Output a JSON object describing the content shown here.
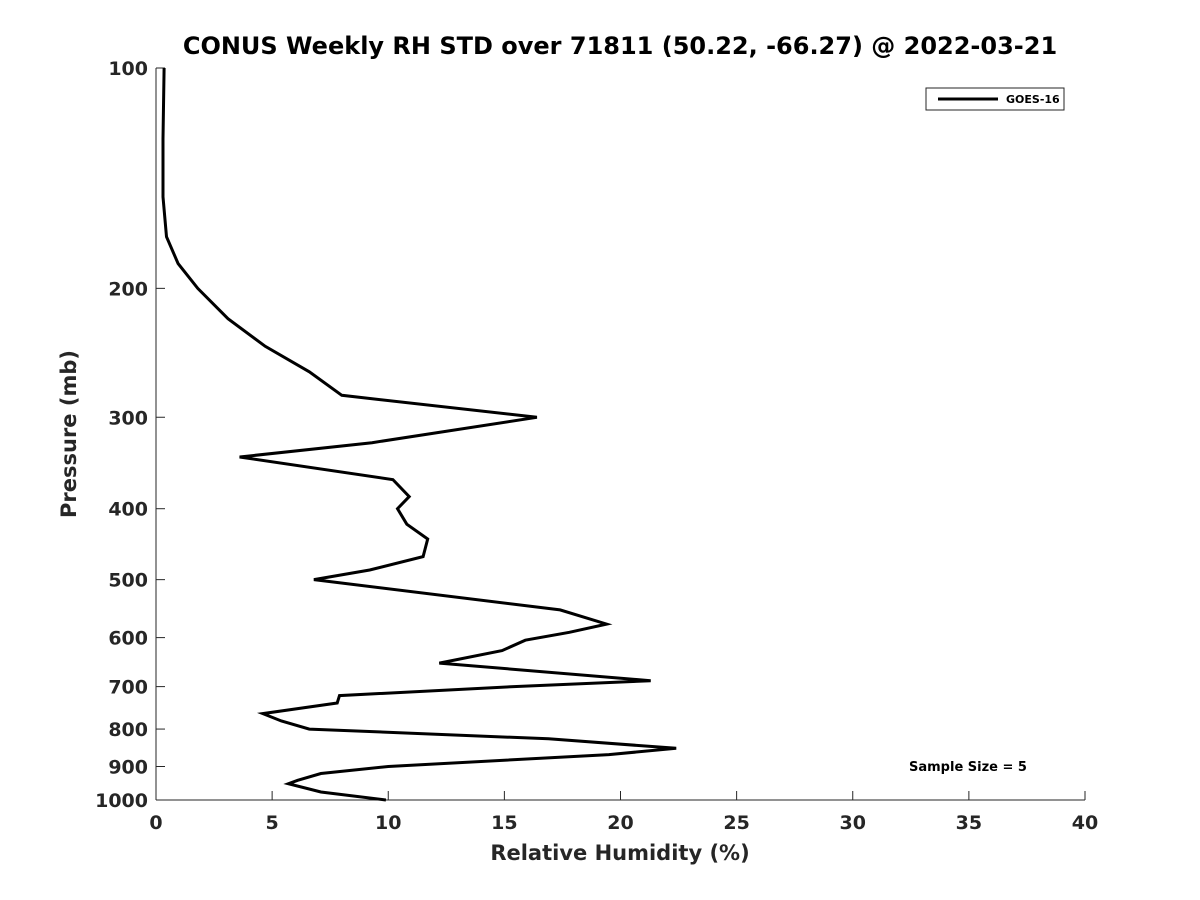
{
  "chart_data": {
    "type": "line",
    "title": "CONUS Weekly RH STD over 71811 (50.22, -66.27) @ 2022-03-21",
    "xlabel": "Relative Humidity (%)",
    "ylabel": "Pressure (mb)",
    "xlim": [
      0,
      40
    ],
    "ylim": [
      100,
      1000
    ],
    "yscale": "log",
    "yreversed": true,
    "grid": false,
    "legend_position": "top-right",
    "x_ticks": [
      0,
      5,
      10,
      15,
      20,
      25,
      30,
      35,
      40
    ],
    "x_tick_labels": [
      "0",
      "5",
      "10",
      "15",
      "20",
      "25",
      "30",
      "35",
      "40"
    ],
    "y_ticks": [
      100,
      200,
      300,
      400,
      500,
      600,
      700,
      800,
      900,
      1000
    ],
    "y_tick_labels": [
      "100",
      "200",
      "300",
      "400",
      "500",
      "600",
      "700",
      "800",
      "900",
      "1000"
    ],
    "series": [
      {
        "name": "GOES-16",
        "color": "#000000",
        "points": [
          [
            0.35,
            100
          ],
          [
            0.3,
            125
          ],
          [
            0.3,
            150
          ],
          [
            0.45,
            170
          ],
          [
            0.95,
            185
          ],
          [
            1.8,
            200
          ],
          [
            3.1,
            220
          ],
          [
            4.7,
            240
          ],
          [
            6.6,
            260
          ],
          [
            8.0,
            280
          ],
          [
            16.4,
            300
          ],
          [
            9.3,
            325
          ],
          [
            3.6,
            340
          ],
          [
            10.2,
            365
          ],
          [
            10.9,
            385
          ],
          [
            10.4,
            400
          ],
          [
            10.8,
            420
          ],
          [
            11.7,
            440
          ],
          [
            11.5,
            465
          ],
          [
            9.2,
            485
          ],
          [
            6.8,
            500
          ],
          [
            17.4,
            550
          ],
          [
            19.4,
            575
          ],
          [
            17.8,
            590
          ],
          [
            15.9,
            605
          ],
          [
            14.9,
            625
          ],
          [
            12.2,
            650
          ],
          [
            21.3,
            687
          ],
          [
            15.4,
            700
          ],
          [
            7.9,
            720
          ],
          [
            7.8,
            737
          ],
          [
            4.6,
            762
          ],
          [
            5.4,
            780
          ],
          [
            6.6,
            800
          ],
          [
            16.9,
            825
          ],
          [
            22.4,
            850
          ],
          [
            19.5,
            867
          ],
          [
            10.0,
            900
          ],
          [
            7.1,
            920
          ],
          [
            6.1,
            940
          ],
          [
            5.7,
            950
          ],
          [
            7.1,
            975
          ],
          [
            9.9,
            1000
          ]
        ]
      }
    ],
    "annotations": [
      "Sample Size = 5"
    ]
  }
}
